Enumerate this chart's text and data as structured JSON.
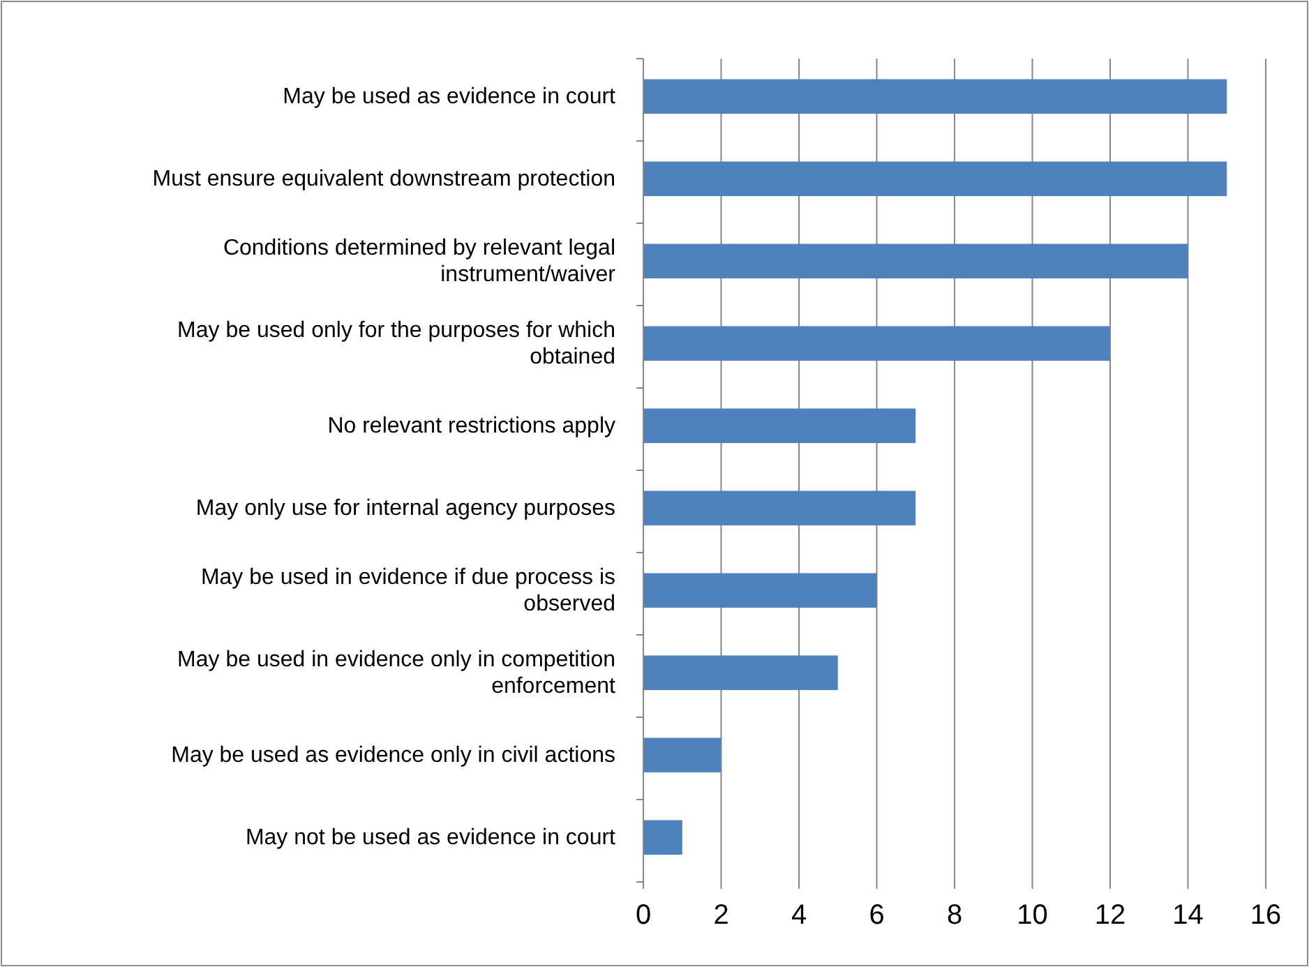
{
  "chart_data": {
    "type": "bar",
    "orientation": "horizontal",
    "categories": [
      "May be used as evidence in court",
      "Must ensure equivalent downstream protection",
      "Conditions determined by relevant legal instrument/waiver",
      "May be used only for the purposes for which obtained",
      "No relevant restrictions apply",
      "May only use for internal agency purposes",
      "May be used in evidence if due process is observed",
      "May be used in evidence only in competition enforcement",
      "May be used as evidence only in civil actions",
      "May not be used as evidence in court"
    ],
    "values": [
      15,
      15,
      14,
      12,
      7,
      7,
      6,
      5,
      2,
      1
    ],
    "color": "#4f81bd",
    "xlim": [
      0,
      16
    ],
    "xticks": [
      0,
      2,
      4,
      6,
      8,
      10,
      12,
      14,
      16
    ],
    "grid": "x"
  }
}
